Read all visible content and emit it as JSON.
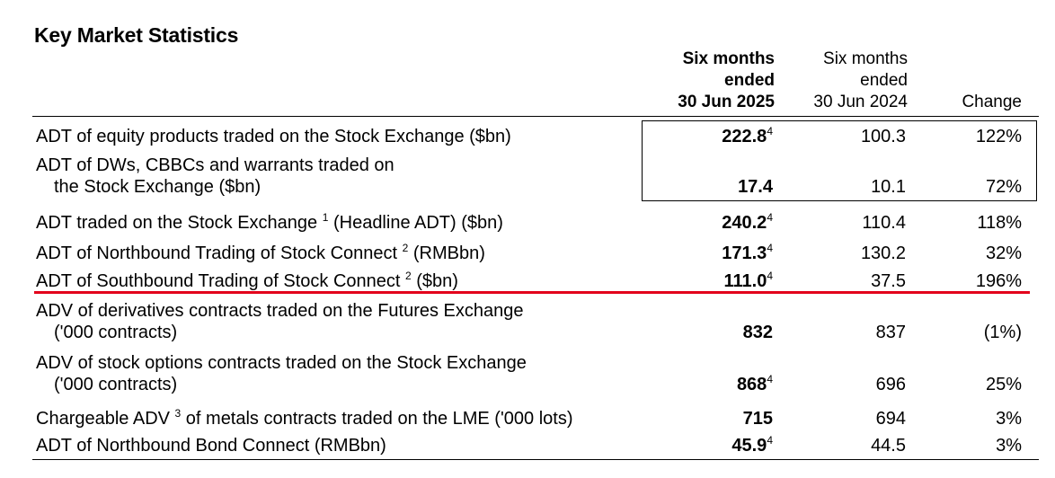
{
  "title": "Key Market Statistics",
  "columns": {
    "current": [
      "Six months",
      "ended",
      "30 Jun 2025"
    ],
    "previous": [
      "Six months",
      "ended",
      "30 Jun 2024"
    ],
    "change": "Change"
  },
  "rows": [
    {
      "label": "ADT of equity products traded on the Stock Exchange ($bn)",
      "label2": "",
      "label_sup": "",
      "label_suffix": "",
      "current": "222.8",
      "current_note": "4",
      "previous": "100.3",
      "change": "122%"
    },
    {
      "label": "ADT of DWs, CBBCs and warrants traded on",
      "label2": "the Stock Exchange ($bn)",
      "label_sup": "",
      "label_suffix": "",
      "current": "17.4",
      "current_note": "",
      "previous": "10.1",
      "change": "72%"
    },
    {
      "label": "ADT traded on the Stock Exchange ",
      "label2": "",
      "label_sup": "1",
      "label_suffix": " (Headline ADT) ($bn)",
      "current": "240.2",
      "current_note": "4",
      "previous": "110.4",
      "change": "118%"
    },
    {
      "label": "ADT of Northbound Trading of Stock Connect ",
      "label2": "",
      "label_sup": "2",
      "label_suffix": " (RMBbn)",
      "current": "171.3",
      "current_note": "4",
      "previous": "130.2",
      "change": "32%"
    },
    {
      "label": "ADT of Southbound Trading of Stock Connect ",
      "label2": "",
      "label_sup": "2",
      "label_suffix": " ($bn)",
      "current": "111.0",
      "current_note": "4",
      "previous": "37.5",
      "change": "196%"
    },
    {
      "label": "ADV of derivatives contracts traded on the Futures Exchange",
      "label2": "('000 contracts)",
      "label_sup": "",
      "label_suffix": "",
      "current": "832",
      "current_note": "",
      "previous": "837",
      "change": "(1%)"
    },
    {
      "label": "ADV of stock options contracts traded on the Stock Exchange",
      "label2": "('000 contracts)",
      "label_sup": "",
      "label_suffix": "",
      "current": "868",
      "current_note": "4",
      "previous": "696",
      "change": "25%"
    },
    {
      "label": "Chargeable ADV ",
      "label2": "",
      "label_sup": "3",
      "label_suffix": " of metals contracts traded on the LME ('000 lots)",
      "current": "715",
      "current_note": "",
      "previous": "694",
      "change": "3%"
    },
    {
      "label": "ADT of Northbound Bond Connect (RMBbn)",
      "label2": "",
      "label_sup": "",
      "label_suffix": "",
      "current": "45.9",
      "current_note": "4",
      "previous": "44.5",
      "change": "3%"
    }
  ],
  "highlight_color": "#e3001b"
}
